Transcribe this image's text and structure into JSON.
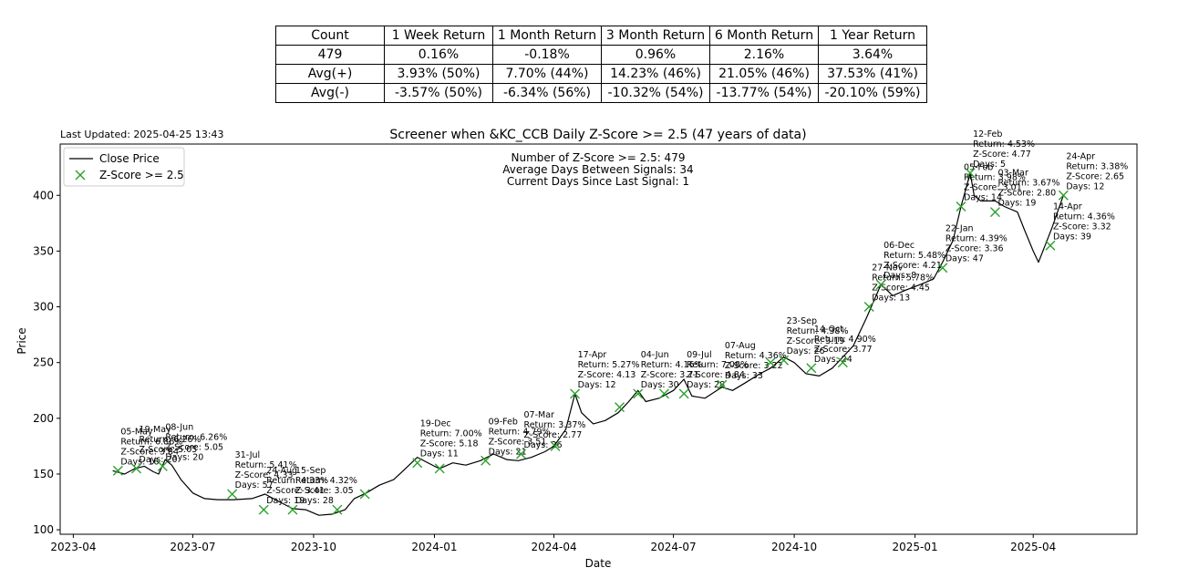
{
  "stats_table": {
    "header": [
      "Count",
      "1 Week Return",
      "1 Month Return",
      "3 Month Return",
      "6 Month Return",
      "1 Year Return"
    ],
    "rows": [
      [
        "479",
        "0.16%",
        "-0.18%",
        "0.96%",
        "2.16%",
        "3.64%"
      ],
      [
        "Avg(+)",
        "3.93% (50%)",
        "7.70% (44%)",
        "14.23% (46%)",
        "21.05% (46%)",
        "37.53% (41%)"
      ],
      [
        "Avg(-)",
        "-3.57% (50%)",
        "-6.34% (56%)",
        "-10.32% (54%)",
        "-13.77% (54%)",
        "-20.10% (59%)"
      ]
    ]
  },
  "last_updated": "Last Updated: 2025-04-25 13:43",
  "chart_data": {
    "type": "line",
    "title": "Screener when &KC_CCB Daily Z-Score >= 2.5 (47 years of data)",
    "xlabel": "Date",
    "ylabel": "Price",
    "ylim": [
      96,
      446
    ],
    "xlim": [
      "2023-03-22",
      "2025-06-19"
    ],
    "xticks": [
      "2023-04",
      "2023-07",
      "2023-10",
      "2024-01",
      "2024-04",
      "2024-07",
      "2024-10",
      "2025-01",
      "2025-04"
    ],
    "yticks": [
      100,
      150,
      200,
      250,
      300,
      350,
      400
    ],
    "legend": {
      "position": "top-left",
      "entries": [
        "Close Price",
        "Z-Score >= 2.5"
      ]
    },
    "info_lines": [
      "Number of Z-Score >= 2.5: 479",
      "Average Days Between Signals: 34",
      "Current Days Since Last Signal: 1"
    ],
    "colors": {
      "line": "#000000",
      "signal": "#2ca02c"
    },
    "series": [
      {
        "name": "Close Price",
        "points": [
          [
            "2023-05-01",
            153
          ],
          [
            "2023-05-10",
            150
          ],
          [
            "2023-05-18",
            155
          ],
          [
            "2023-05-25",
            157
          ],
          [
            "2023-06-01",
            152
          ],
          [
            "2023-06-05",
            150
          ],
          [
            "2023-06-10",
            163
          ],
          [
            "2023-06-15",
            158
          ],
          [
            "2023-06-22",
            145
          ],
          [
            "2023-07-01",
            133
          ],
          [
            "2023-07-10",
            128
          ],
          [
            "2023-07-20",
            127
          ],
          [
            "2023-08-01",
            127
          ],
          [
            "2023-08-15",
            128
          ],
          [
            "2023-08-25",
            132
          ],
          [
            "2023-09-05",
            125
          ],
          [
            "2023-09-15",
            119
          ],
          [
            "2023-09-25",
            118
          ],
          [
            "2023-10-05",
            113
          ],
          [
            "2023-10-15",
            114
          ],
          [
            "2023-10-25",
            118
          ],
          [
            "2023-11-01",
            128
          ],
          [
            "2023-11-10",
            133
          ],
          [
            "2023-11-20",
            140
          ],
          [
            "2023-12-01",
            145
          ],
          [
            "2023-12-10",
            155
          ],
          [
            "2023-12-19",
            165
          ],
          [
            "2024-01-01",
            157
          ],
          [
            "2024-01-05",
            155
          ],
          [
            "2024-01-15",
            160
          ],
          [
            "2024-01-25",
            158
          ],
          [
            "2024-02-05",
            162
          ],
          [
            "2024-02-15",
            168
          ],
          [
            "2024-02-25",
            163
          ],
          [
            "2024-03-05",
            162
          ],
          [
            "2024-03-15",
            165
          ],
          [
            "2024-03-25",
            170
          ],
          [
            "2024-04-01",
            175
          ],
          [
            "2024-04-10",
            190
          ],
          [
            "2024-04-17",
            222
          ],
          [
            "2024-04-22",
            205
          ],
          [
            "2024-05-01",
            195
          ],
          [
            "2024-05-10",
            198
          ],
          [
            "2024-05-20",
            205
          ],
          [
            "2024-05-28",
            215
          ],
          [
            "2024-06-04",
            225
          ],
          [
            "2024-06-10",
            215
          ],
          [
            "2024-06-20",
            218
          ],
          [
            "2024-07-01",
            225
          ],
          [
            "2024-07-09",
            235
          ],
          [
            "2024-07-15",
            220
          ],
          [
            "2024-07-25",
            218
          ],
          [
            "2024-08-07",
            228
          ],
          [
            "2024-08-15",
            225
          ],
          [
            "2024-08-25",
            232
          ],
          [
            "2024-09-05",
            240
          ],
          [
            "2024-09-13",
            245
          ],
          [
            "2024-09-23",
            255
          ],
          [
            "2024-10-01",
            250
          ],
          [
            "2024-10-10",
            240
          ],
          [
            "2024-10-20",
            238
          ],
          [
            "2024-10-30",
            245
          ],
          [
            "2024-11-07",
            255
          ],
          [
            "2024-11-15",
            265
          ],
          [
            "2024-11-25",
            290
          ],
          [
            "2024-12-06",
            320
          ],
          [
            "2024-12-15",
            310
          ],
          [
            "2024-12-25",
            315
          ],
          [
            "2025-01-05",
            320
          ],
          [
            "2025-01-15",
            325
          ],
          [
            "2025-01-22",
            340
          ],
          [
            "2025-01-30",
            360
          ],
          [
            "2025-02-05",
            390
          ],
          [
            "2025-02-12",
            420
          ],
          [
            "2025-02-15",
            400
          ],
          [
            "2025-02-20",
            395
          ],
          [
            "2025-03-03",
            395
          ],
          [
            "2025-03-10",
            390
          ],
          [
            "2025-03-20",
            385
          ],
          [
            "2025-03-25",
            370
          ],
          [
            "2025-04-01",
            350
          ],
          [
            "2025-04-05",
            340
          ],
          [
            "2025-04-10",
            355
          ],
          [
            "2025-04-15",
            370
          ],
          [
            "2025-04-24",
            400
          ]
        ]
      },
      {
        "name": "Z-Score >= 2.5",
        "points": [
          [
            "2023-05-05",
            153
          ],
          [
            "2023-05-19",
            155
          ],
          [
            "2023-06-08",
            157
          ],
          [
            "2023-07-31",
            132
          ],
          [
            "2023-08-24",
            118
          ],
          [
            "2023-09-15",
            118
          ],
          [
            "2023-10-19",
            118
          ],
          [
            "2023-11-09",
            132
          ],
          [
            "2023-12-19",
            160
          ],
          [
            "2024-01-05",
            155
          ],
          [
            "2024-02-09",
            162
          ],
          [
            "2024-03-07",
            168
          ],
          [
            "2024-04-02",
            175
          ],
          [
            "2024-04-17",
            222
          ],
          [
            "2024-05-21",
            210
          ],
          [
            "2024-06-04",
            222
          ],
          [
            "2024-06-24",
            222
          ],
          [
            "2024-07-09",
            222
          ],
          [
            "2024-08-07",
            230
          ],
          [
            "2024-09-13",
            250
          ],
          [
            "2024-09-23",
            252
          ],
          [
            "2024-10-14",
            245
          ],
          [
            "2024-11-07",
            250
          ],
          [
            "2024-11-27",
            300
          ],
          [
            "2024-12-06",
            320
          ],
          [
            "2025-01-22",
            335
          ],
          [
            "2025-02-05",
            390
          ],
          [
            "2025-02-12",
            420
          ],
          [
            "2025-03-03",
            385
          ],
          [
            "2025-04-14",
            355
          ],
          [
            "2025-04-24",
            400
          ]
        ]
      }
    ],
    "annotations": [
      {
        "date": "2023-05-05",
        "y": 153,
        "text": [
          "05-May",
          "Return: 6.86%",
          "Z-Score: 3.84",
          "Days: 16"
        ]
      },
      {
        "date": "2023-05-19",
        "y": 155,
        "text": [
          "19-May",
          "Return: 6.26%",
          "Z-Score: 5.05",
          "Days: 20"
        ]
      },
      {
        "date": "2023-06-08",
        "y": 157,
        "text": [
          "08-Jun",
          "Return: 6.26%",
          "Z-Score: 5.05",
          "Days: 20"
        ]
      },
      {
        "date": "2023-07-31",
        "y": 132,
        "text": [
          "31-Jul",
          "Return: 5.41%",
          "Z-Score: 4.33",
          "Days: 57"
        ]
      },
      {
        "date": "2023-08-24",
        "y": 118,
        "text": [
          "24-Aug",
          "Return: 4.33%",
          "Z-Score: 3.41",
          "Days: 19"
        ]
      },
      {
        "date": "2023-09-15",
        "y": 118,
        "text": [
          "15-Sep",
          "Return: 4.32%",
          "Z-Score: 3.05",
          "Days: 28"
        ]
      },
      {
        "date": "2023-12-19",
        "y": 160,
        "text": [
          "19-Dec",
          "Return: 7.00%",
          "Z-Score: 5.18",
          "Days: 11"
        ]
      },
      {
        "date": "2024-02-09",
        "y": 162,
        "text": [
          "09-Feb",
          "Return: 4.79%",
          "Z-Score: 3.51",
          "Days: 21"
        ]
      },
      {
        "date": "2024-03-07",
        "y": 168,
        "text": [
          "07-Mar",
          "Return: 3.37%",
          "Z-Score: 2.77",
          "Days: 26"
        ]
      },
      {
        "date": "2024-04-17",
        "y": 222,
        "text": [
          "17-Apr",
          "Return: 5.27%",
          "Z-Score: 4.13",
          "Days: 12"
        ]
      },
      {
        "date": "2024-06-04",
        "y": 222,
        "text": [
          "04-Jun",
          "Return: 4.16%",
          "Z-Score: 3.71",
          "Days: 30"
        ]
      },
      {
        "date": "2024-07-09",
        "y": 222,
        "text": [
          "09-Jul",
          "Return: 7.08%",
          "Z-Score: 4.84",
          "Days: 28"
        ]
      },
      {
        "date": "2024-08-07",
        "y": 230,
        "text": [
          "07-Aug",
          "Return: 4.36%",
          "Z-Score: 3.22",
          "Days: 33"
        ]
      },
      {
        "date": "2024-09-23",
        "y": 252,
        "text": [
          "23-Sep",
          "Return: 4.38%",
          "Z-Score: 3.19",
          "Days: 26"
        ]
      },
      {
        "date": "2024-10-14",
        "y": 245,
        "text": [
          "14-Oct",
          "Return: 4.90%",
          "Z-Score: 3.77",
          "Days: 24"
        ]
      },
      {
        "date": "2024-11-27",
        "y": 300,
        "text": [
          "27-Nov",
          "Return: 5.78%",
          "Z-Score: 4.45",
          "Days: 13"
        ]
      },
      {
        "date": "2024-12-06",
        "y": 320,
        "text": [
          "06-Dec",
          "Return: 5.48%",
          "Z-Score: 4.21",
          "Days: 8"
        ]
      },
      {
        "date": "2025-01-22",
        "y": 335,
        "text": [
          "22-Jan",
          "Return: 4.39%",
          "Z-Score: 3.36",
          "Days: 47"
        ]
      },
      {
        "date": "2025-02-05",
        "y": 390,
        "text": [
          "05-Feb",
          "Return: 3.98%",
          "Z-Score: 3.01",
          "Days: 14"
        ]
      },
      {
        "date": "2025-02-12",
        "y": 420,
        "text": [
          "12-Feb",
          "Return: 4.53%",
          "Z-Score: 4.77",
          "Days: 5"
        ]
      },
      {
        "date": "2025-03-03",
        "y": 385,
        "text": [
          "03-Mar",
          "Return: 3.67%",
          "Z-Score: 2.80",
          "Days: 19"
        ]
      },
      {
        "date": "2025-04-14",
        "y": 355,
        "text": [
          "14-Apr",
          "Return: 4.36%",
          "Z-Score: 3.32",
          "Days: 39"
        ]
      },
      {
        "date": "2025-04-24",
        "y": 400,
        "text": [
          "24-Apr",
          "Return: 3.38%",
          "Z-Score: 2.65",
          "Days: 12"
        ]
      }
    ]
  }
}
